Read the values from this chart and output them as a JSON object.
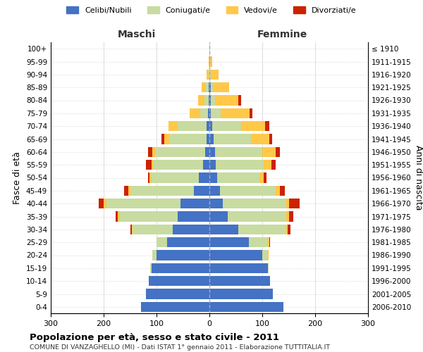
{
  "age_groups": [
    "0-4",
    "5-9",
    "10-14",
    "15-19",
    "20-24",
    "25-29",
    "30-34",
    "35-39",
    "40-44",
    "45-49",
    "50-54",
    "55-59",
    "60-64",
    "65-69",
    "70-74",
    "75-79",
    "80-84",
    "85-89",
    "90-94",
    "95-99",
    "100+"
  ],
  "birth_years": [
    "2006-2010",
    "2001-2005",
    "1996-2000",
    "1991-1995",
    "1986-1990",
    "1981-1985",
    "1976-1980",
    "1971-1975",
    "1966-1970",
    "1961-1965",
    "1956-1960",
    "1951-1955",
    "1946-1950",
    "1941-1945",
    "1936-1940",
    "1931-1935",
    "1926-1930",
    "1921-1925",
    "1916-1920",
    "1911-1915",
    "≤ 1910"
  ],
  "maschi": {
    "celibi": [
      130,
      120,
      115,
      110,
      100,
      80,
      70,
      60,
      55,
      30,
      20,
      12,
      8,
      6,
      5,
      3,
      2,
      2,
      0,
      0,
      0
    ],
    "coniugati": [
      0,
      0,
      0,
      2,
      8,
      20,
      75,
      110,
      140,
      120,
      90,
      95,
      95,
      70,
      55,
      15,
      8,
      5,
      2,
      0,
      0
    ],
    "vedovi": [
      0,
      0,
      0,
      0,
      0,
      0,
      2,
      4,
      5,
      4,
      3,
      3,
      5,
      10,
      18,
      20,
      12,
      8,
      3,
      2,
      0
    ],
    "divorziati": [
      0,
      0,
      0,
      0,
      0,
      0,
      3,
      3,
      10,
      8,
      3,
      10,
      8,
      5,
      0,
      0,
      0,
      0,
      0,
      0,
      0
    ]
  },
  "femmine": {
    "nubili": [
      140,
      120,
      115,
      110,
      100,
      75,
      55,
      35,
      25,
      20,
      15,
      12,
      10,
      8,
      5,
      3,
      2,
      2,
      0,
      0,
      0
    ],
    "coniugate": [
      0,
      0,
      0,
      2,
      10,
      35,
      90,
      110,
      120,
      105,
      80,
      90,
      90,
      70,
      55,
      18,
      8,
      5,
      2,
      0,
      0
    ],
    "vedove": [
      0,
      0,
      0,
      0,
      2,
      3,
      3,
      5,
      5,
      8,
      8,
      15,
      25,
      35,
      45,
      55,
      45,
      30,
      15,
      5,
      0
    ],
    "divorziate": [
      0,
      0,
      0,
      0,
      0,
      2,
      5,
      8,
      20,
      10,
      5,
      8,
      8,
      5,
      8,
      5,
      5,
      0,
      0,
      0,
      0
    ]
  },
  "colors": {
    "celibi": "#4472C4",
    "coniugati": "#c8dba0",
    "vedovi": "#ffc848",
    "divorziati": "#cc2200"
  },
  "title": "Popolazione per età, sesso e stato civile - 2011",
  "subtitle": "COMUNE DI VANZAGHELLO (MI) - Dati ISTAT 1° gennaio 2011 - Elaborazione TUTTITALIA.IT",
  "xlabel_left": "Maschi",
  "xlabel_right": "Femmine",
  "ylabel_left": "Fasce di età",
  "ylabel_right": "Anni di nascita",
  "xlim": 300,
  "legend_labels": [
    "Celibi/Nubili",
    "Coniugati/e",
    "Vedovi/e",
    "Divorziati/e"
  ],
  "background_color": "#ffffff",
  "grid_color": "#cccccc"
}
